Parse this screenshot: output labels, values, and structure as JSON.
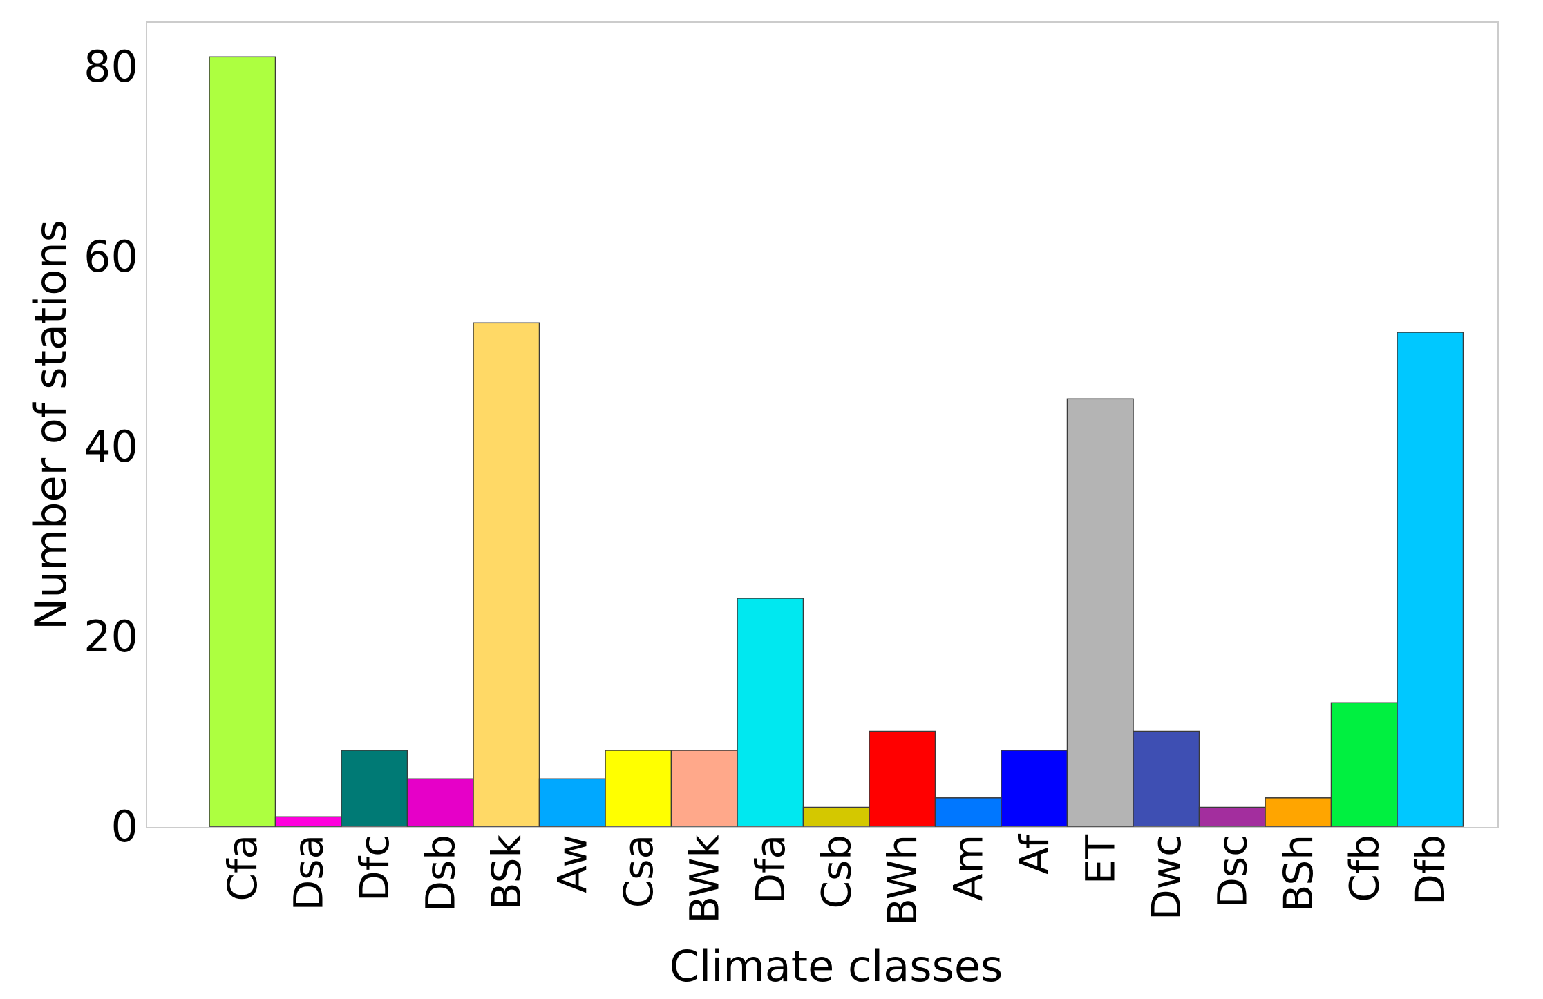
{
  "chart_data": {
    "type": "bar",
    "title": "",
    "xlabel": "Climate classes",
    "ylabel": "Number of stations",
    "ylim": [
      0,
      85
    ],
    "yticks": [
      0,
      20,
      40,
      60,
      80
    ],
    "grid": false,
    "legend": "none",
    "categories": [
      "Cfa",
      "Dsa",
      "Dfc",
      "Dsb",
      "BSk",
      "Aw",
      "Csa",
      "BWk",
      "Dfa",
      "Csb",
      "BWh",
      "Am",
      "Af",
      "ET",
      "Dwc",
      "Dsc",
      "BSh",
      "Cfb",
      "Dfb"
    ],
    "values": [
      81,
      1,
      8,
      5,
      53,
      5,
      8,
      8,
      24,
      2,
      10,
      3,
      8,
      45,
      10,
      2,
      3,
      13,
      52
    ],
    "colors": [
      "#adff40",
      "#ff00dd",
      "#007a75",
      "#e600c8",
      "#ffd966",
      "#00a8ff",
      "#ffff00",
      "#ffa88a",
      "#00e8f0",
      "#d4c800",
      "#ff0000",
      "#0077ff",
      "#0000ff",
      "#b4b4b4",
      "#3e4fb3",
      "#a32e9e",
      "#ffa500",
      "#00f040",
      "#00c8ff"
    ]
  }
}
